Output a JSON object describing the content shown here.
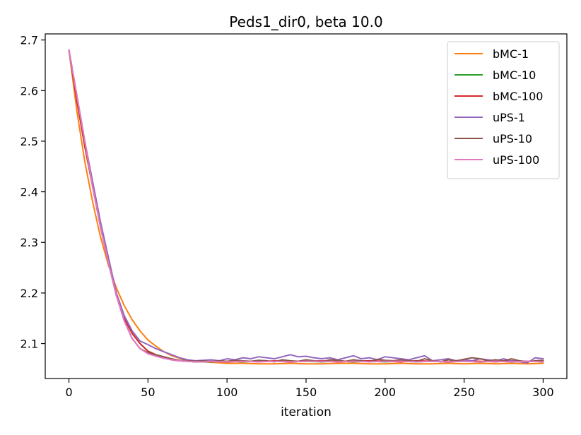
{
  "chart_data": {
    "type": "line",
    "title": "Peds1_dir0, beta 10.0",
    "xlabel": "iteration",
    "ylabel": "",
    "xlim": [
      -15,
      315
    ],
    "ylim": [
      2.031,
      2.712
    ],
    "grid": false,
    "legend_position": "top-right",
    "x_ticks": [
      0,
      50,
      100,
      150,
      200,
      250,
      300
    ],
    "x_tick_labels": [
      "0",
      "50",
      "100",
      "150",
      "200",
      "250",
      "300"
    ],
    "y_ticks": [
      2.1,
      2.2,
      2.3,
      2.4,
      2.5,
      2.6,
      2.7
    ],
    "y_tick_labels": [
      "2.1",
      "2.2",
      "2.3",
      "2.4",
      "2.5",
      "2.6",
      "2.7"
    ],
    "series": [
      {
        "name": "bMC-1",
        "color": "#ff7f0e",
        "x": [
          0,
          5,
          10,
          15,
          20,
          25,
          30,
          35,
          40,
          45,
          50,
          55,
          60,
          65,
          70,
          75,
          80,
          85,
          90,
          95,
          100,
          110,
          120,
          130,
          140,
          150,
          160,
          170,
          180,
          190,
          200,
          210,
          220,
          230,
          240,
          250,
          260,
          270,
          280,
          290,
          300
        ],
        "y": [
          2.68,
          2.56,
          2.46,
          2.38,
          2.31,
          2.255,
          2.21,
          2.175,
          2.147,
          2.125,
          2.107,
          2.095,
          2.084,
          2.076,
          2.071,
          2.067,
          2.065,
          2.064,
          2.063,
          2.062,
          2.061,
          2.061,
          2.06,
          2.06,
          2.061,
          2.06,
          2.06,
          2.061,
          2.061,
          2.06,
          2.06,
          2.061,
          2.06,
          2.06,
          2.061,
          2.06,
          2.061,
          2.06,
          2.061,
          2.06,
          2.061
        ]
      },
      {
        "name": "bMC-10",
        "color": "#2ca02c",
        "x": [
          0,
          5,
          10,
          15,
          20,
          25,
          30,
          35,
          40,
          45,
          50,
          55,
          60,
          65,
          70,
          75,
          80,
          90,
          100,
          110,
          120,
          130,
          140,
          150,
          160,
          170,
          180,
          190,
          200,
          210,
          220,
          230,
          240,
          250,
          260,
          270,
          280,
          290,
          300
        ],
        "y": [
          2.68,
          2.58,
          2.49,
          2.41,
          2.33,
          2.26,
          2.195,
          2.15,
          2.12,
          2.1,
          2.085,
          2.078,
          2.072,
          2.068,
          2.066,
          2.065,
          2.064,
          2.064,
          2.065,
          2.064,
          2.065,
          2.065,
          2.064,
          2.065,
          2.064,
          2.065,
          2.064,
          2.065,
          2.064,
          2.065,
          2.064,
          2.065,
          2.064,
          2.065,
          2.064,
          2.065,
          2.064,
          2.065,
          2.064
        ]
      },
      {
        "name": "bMC-100",
        "color": "#d62728",
        "x": [
          0,
          5,
          10,
          15,
          20,
          25,
          30,
          35,
          40,
          45,
          50,
          55,
          60,
          65,
          70,
          75,
          80,
          90,
          100,
          110,
          120,
          130,
          140,
          150,
          160,
          170,
          180,
          190,
          200,
          210,
          220,
          230,
          240,
          250,
          260,
          270,
          280,
          290,
          300
        ],
        "y": [
          2.68,
          2.58,
          2.49,
          2.41,
          2.33,
          2.26,
          2.195,
          2.15,
          2.12,
          2.1,
          2.085,
          2.078,
          2.072,
          2.068,
          2.066,
          2.065,
          2.064,
          2.065,
          2.064,
          2.065,
          2.064,
          2.066,
          2.064,
          2.065,
          2.066,
          2.064,
          2.065,
          2.066,
          2.065,
          2.064,
          2.066,
          2.065,
          2.064,
          2.066,
          2.065,
          2.064,
          2.066,
          2.065,
          2.066
        ]
      },
      {
        "name": "uPS-1",
        "color": "#9467bd",
        "x": [
          0,
          5,
          10,
          15,
          20,
          25,
          30,
          35,
          40,
          45,
          50,
          55,
          60,
          65,
          70,
          75,
          80,
          85,
          90,
          95,
          100,
          105,
          110,
          115,
          120,
          125,
          130,
          135,
          140,
          145,
          150,
          155,
          160,
          165,
          170,
          175,
          180,
          185,
          190,
          195,
          200,
          205,
          210,
          215,
          220,
          225,
          230,
          235,
          240,
          245,
          250,
          255,
          260,
          265,
          270,
          275,
          280,
          285,
          290,
          295,
          300
        ],
        "y": [
          2.68,
          2.59,
          2.5,
          2.42,
          2.34,
          2.27,
          2.2,
          2.155,
          2.125,
          2.105,
          2.098,
          2.09,
          2.084,
          2.078,
          2.072,
          2.068,
          2.066,
          2.067,
          2.068,
          2.066,
          2.07,
          2.068,
          2.072,
          2.07,
          2.074,
          2.072,
          2.07,
          2.074,
          2.078,
          2.074,
          2.075,
          2.072,
          2.07,
          2.072,
          2.068,
          2.072,
          2.076,
          2.07,
          2.072,
          2.068,
          2.074,
          2.072,
          2.07,
          2.068,
          2.072,
          2.076,
          2.066,
          2.068,
          2.07,
          2.066,
          2.068,
          2.066,
          2.07,
          2.068,
          2.066,
          2.07,
          2.066,
          2.064,
          2.062,
          2.072,
          2.07
        ]
      },
      {
        "name": "uPS-10",
        "color": "#8c564b",
        "x": [
          0,
          5,
          10,
          15,
          20,
          25,
          30,
          35,
          40,
          45,
          50,
          55,
          60,
          65,
          70,
          75,
          80,
          85,
          90,
          95,
          100,
          105,
          110,
          115,
          120,
          125,
          130,
          135,
          140,
          145,
          150,
          155,
          160,
          165,
          170,
          175,
          180,
          185,
          190,
          195,
          200,
          205,
          210,
          215,
          220,
          225,
          230,
          235,
          240,
          245,
          250,
          255,
          260,
          265,
          270,
          275,
          280,
          285,
          290,
          295,
          300
        ],
        "y": [
          2.68,
          2.59,
          2.5,
          2.41,
          2.33,
          2.26,
          2.195,
          2.145,
          2.11,
          2.09,
          2.082,
          2.078,
          2.074,
          2.07,
          2.067,
          2.066,
          2.065,
          2.066,
          2.064,
          2.066,
          2.065,
          2.067,
          2.066,
          2.065,
          2.067,
          2.066,
          2.064,
          2.068,
          2.066,
          2.065,
          2.068,
          2.066,
          2.064,
          2.068,
          2.067,
          2.065,
          2.068,
          2.066,
          2.064,
          2.069,
          2.067,
          2.066,
          2.068,
          2.066,
          2.065,
          2.07,
          2.066,
          2.064,
          2.068,
          2.066,
          2.069,
          2.072,
          2.07,
          2.066,
          2.068,
          2.066,
          2.07,
          2.066,
          2.064,
          2.066,
          2.067
        ]
      },
      {
        "name": "uPS-100",
        "color": "#e377c2",
        "x": [
          0,
          5,
          10,
          15,
          20,
          25,
          30,
          35,
          40,
          45,
          50,
          55,
          60,
          65,
          70,
          75,
          80,
          85,
          90,
          95,
          100,
          110,
          120,
          130,
          140,
          150,
          160,
          170,
          180,
          190,
          200,
          210,
          220,
          230,
          240,
          250,
          260,
          270,
          280,
          290,
          300
        ],
        "y": [
          2.68,
          2.59,
          2.5,
          2.41,
          2.33,
          2.26,
          2.195,
          2.145,
          2.11,
          2.09,
          2.08,
          2.075,
          2.071,
          2.068,
          2.066,
          2.065,
          2.064,
          2.064,
          2.065,
          2.064,
          2.064,
          2.065,
          2.064,
          2.065,
          2.064,
          2.065,
          2.065,
          2.064,
          2.065,
          2.064,
          2.065,
          2.065,
          2.064,
          2.065,
          2.064,
          2.065,
          2.064,
          2.065,
          2.064,
          2.065,
          2.064
        ]
      }
    ]
  }
}
